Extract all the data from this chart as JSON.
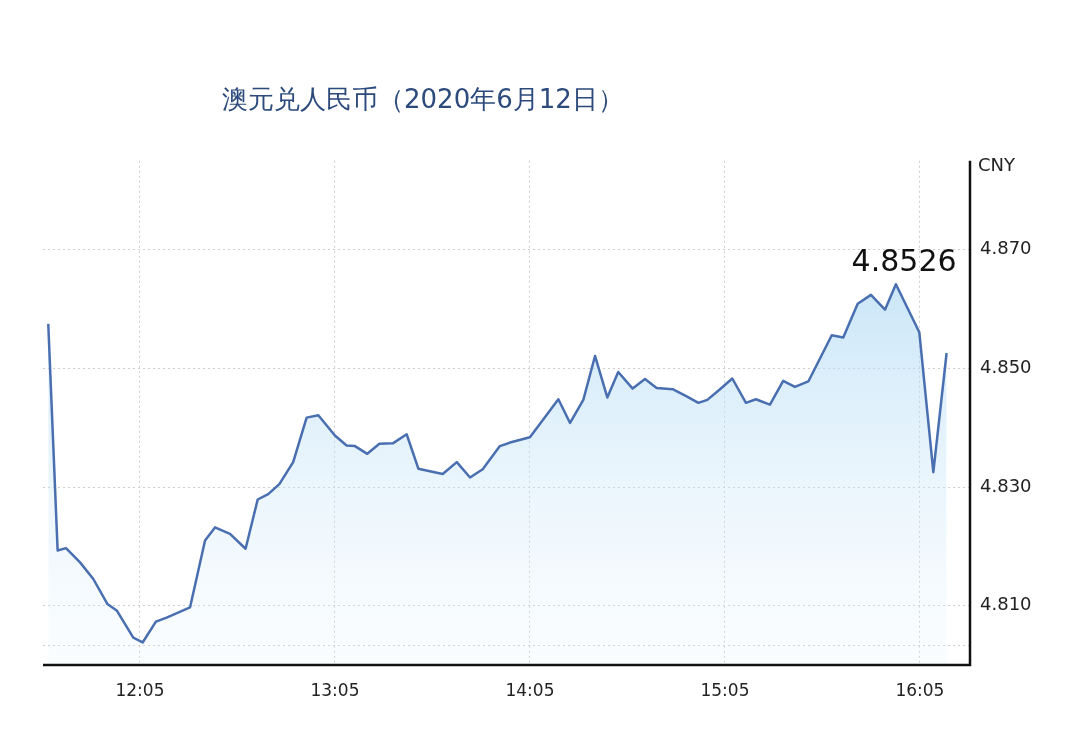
{
  "chart_data": {
    "type": "area",
    "title": "澳元兑人民币（2020年6月12日）",
    "ylabel": "CNY",
    "x": [
      11.613,
      11.661,
      11.704,
      11.776,
      11.844,
      11.916,
      11.964,
      12.049,
      12.097,
      12.165,
      12.22,
      12.34,
      12.417,
      12.468,
      12.545,
      12.625,
      12.687,
      12.741,
      12.798,
      12.869,
      12.938,
      12.998,
      13.083,
      13.143,
      13.186,
      13.249,
      13.311,
      13.382,
      13.451,
      13.511,
      13.636,
      13.708,
      13.776,
      13.841,
      13.929,
      13.981,
      14.083,
      14.229,
      14.289,
      14.357,
      14.417,
      14.48,
      14.536,
      14.61,
      14.673,
      14.733,
      14.815,
      14.887,
      14.947,
      14.993,
      15.058,
      15.121,
      15.191,
      15.242,
      15.314,
      15.382,
      15.442,
      15.511,
      15.631,
      15.69,
      15.764,
      15.832,
      15.904,
      15.96,
      16.08,
      16.152,
      16.22
    ],
    "series": [
      {
        "color": "#4a6fb0",
        "values": [
          4.8575,
          4.8193,
          4.8197,
          4.8173,
          4.8145,
          4.8103,
          4.8092,
          4.8046,
          4.8038,
          4.8073,
          4.808,
          4.8097,
          4.821,
          4.8232,
          4.8221,
          4.8196,
          4.8279,
          4.8288,
          4.8305,
          4.8342,
          4.8417,
          4.8421,
          4.8387,
          4.837,
          4.8369,
          4.8356,
          4.8373,
          4.8374,
          4.8389,
          4.8331,
          4.8322,
          4.8342,
          4.8316,
          4.833,
          4.8369,
          4.8375,
          4.8384,
          4.8448,
          4.8408,
          4.8447,
          4.8521,
          4.8451,
          4.8494,
          4.8466,
          4.8482,
          4.8467,
          4.8465,
          4.8453,
          4.8442,
          4.8447,
          4.8465,
          4.8483,
          4.8442,
          4.8448,
          4.8439,
          4.8479,
          4.8469,
          4.8478,
          4.8556,
          4.8552,
          4.8609,
          4.8624,
          4.8599,
          4.8642,
          4.8561,
          4.8325,
          4.8526
        ]
      }
    ],
    "xlim": [
      11.586,
      16.34
    ],
    "xticks": [
      {
        "value": 12.0833,
        "label": "12:05"
      },
      {
        "value": 13.0833,
        "label": "13:05"
      },
      {
        "value": 14.0833,
        "label": "14:05"
      },
      {
        "value": 15.0833,
        "label": "15:05"
      },
      {
        "value": 16.0833,
        "label": "16:05"
      }
    ],
    "ylim": [
      4.8,
      4.885
    ],
    "yticks": [
      {
        "value": 4.8033,
        "label": null
      },
      {
        "value": 4.81,
        "label": "4.810"
      },
      {
        "value": 4.83,
        "label": "4.830"
      },
      {
        "value": 4.85,
        "label": "4.850"
      },
      {
        "value": 4.87,
        "label": "4.870"
      }
    ],
    "annotations": [
      {
        "text": "4.8526",
        "x": 16.22,
        "y": 4.8526
      }
    ],
    "grid": true,
    "legend": false,
    "marker": "none",
    "line_style": "solid"
  }
}
